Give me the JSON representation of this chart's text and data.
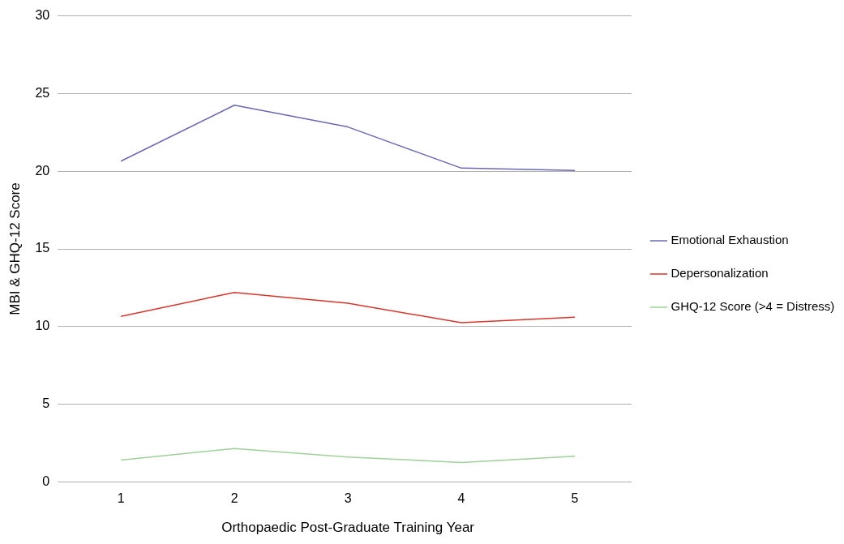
{
  "chart_data": {
    "type": "line",
    "xlabel": "Orthopaedic Post-Graduate Training Year",
    "ylabel": "MBI & GHQ-12 Score",
    "categories": [
      "1",
      "2",
      "3",
      "4",
      "5"
    ],
    "series": [
      {
        "name": "Emotional Exhaustion",
        "color": "#6a68b4",
        "values": [
          20.65,
          24.25,
          22.85,
          20.2,
          20.05
        ]
      },
      {
        "name": "Depersonalization",
        "color": "#d9342c",
        "values": [
          10.65,
          12.2,
          11.5,
          10.25,
          10.6
        ]
      },
      {
        "name": "GHQ-12 Score (>4 = Distress)",
        "color": "#9fd19a",
        "values": [
          1.4,
          2.15,
          1.6,
          1.25,
          1.65
        ]
      }
    ],
    "ylim": [
      0,
      30
    ],
    "yticks": [
      0,
      5,
      10,
      15,
      20,
      25,
      30
    ],
    "grid": "y",
    "legend": "right",
    "marker": "none",
    "line_style": "solid"
  }
}
